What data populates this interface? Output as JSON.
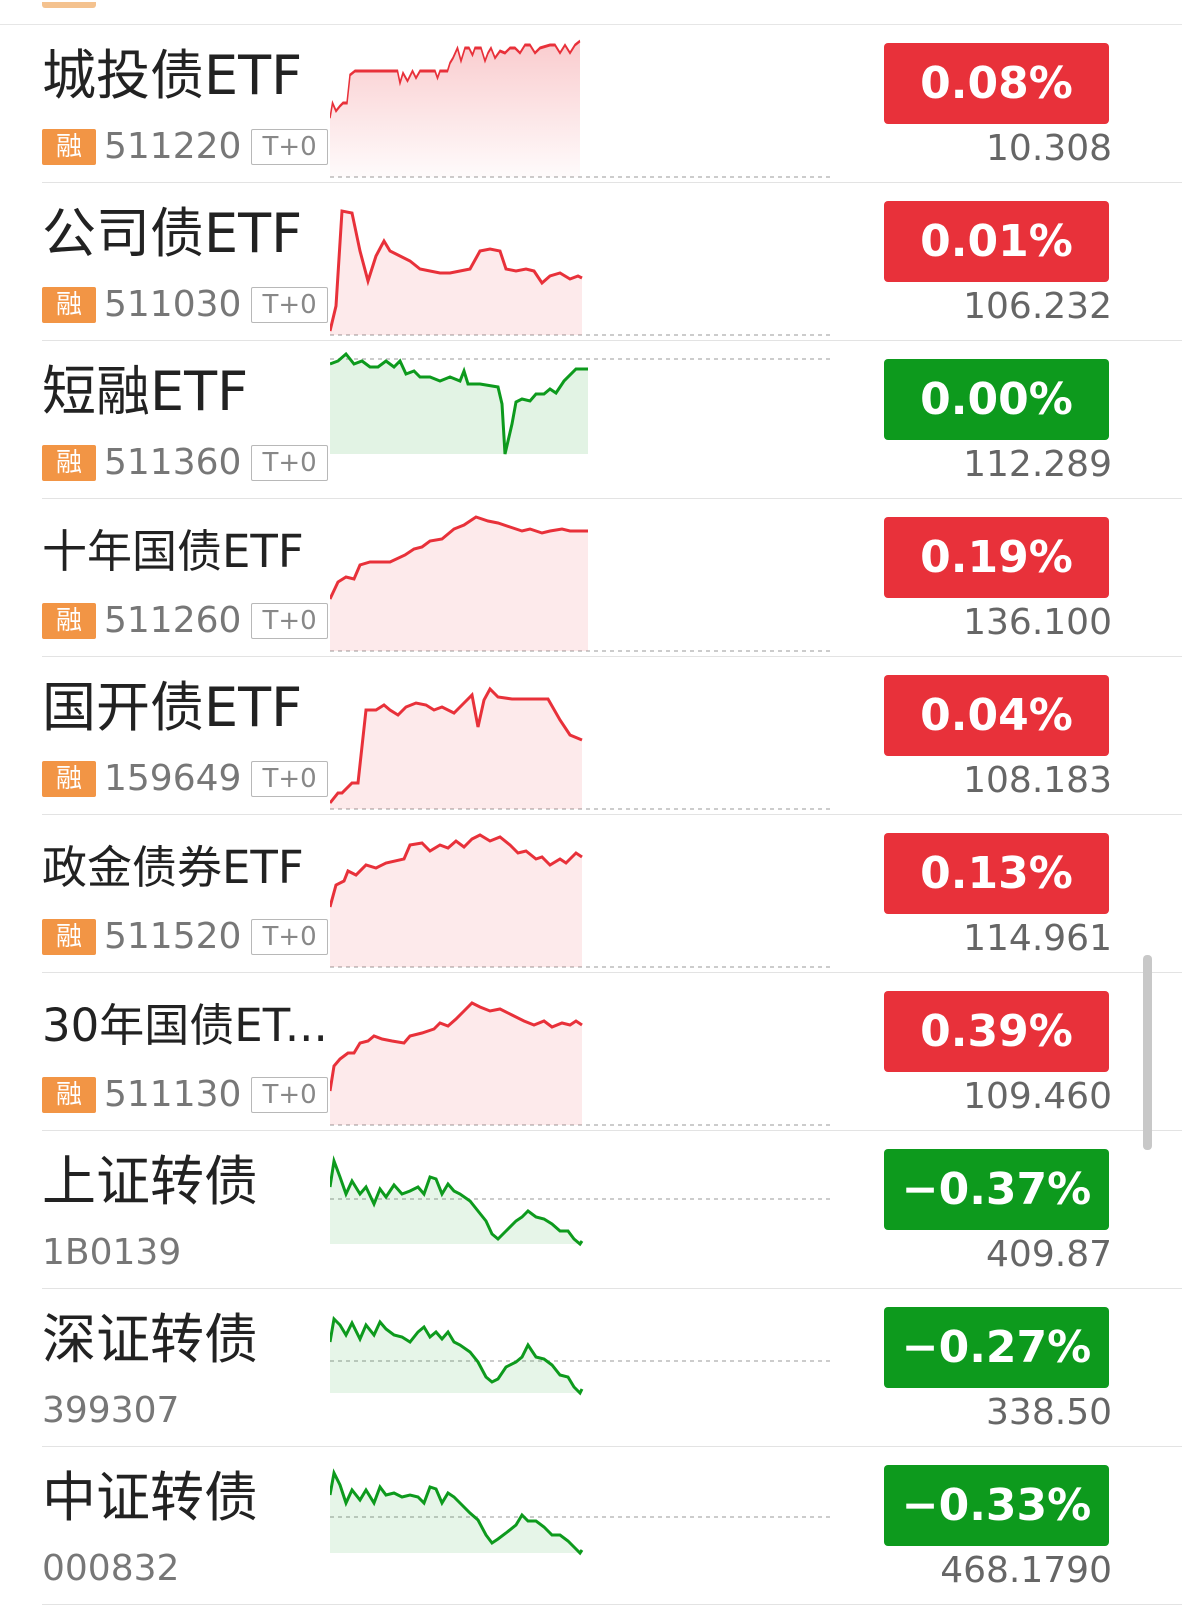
{
  "colors": {
    "up": "#e8313a",
    "down": "#0d9a1d",
    "rong_badge": "#f29545"
  },
  "rows": [
    {
      "name": "城投债ETF",
      "rong": "融",
      "code": "511220",
      "t0": "T+0",
      "change": "0.08%",
      "price": "10.308",
      "trend": "up"
    },
    {
      "name": "公司债ETF",
      "rong": "融",
      "code": "511030",
      "t0": "T+0",
      "change": "0.01%",
      "price": "106.232",
      "trend": "up"
    },
    {
      "name": "短融ETF",
      "rong": "融",
      "code": "511360",
      "t0": "T+0",
      "change": "0.00%",
      "price": "112.289",
      "trend": "flat"
    },
    {
      "name": "十年国债ETF",
      "rong": "融",
      "code": "511260",
      "t0": "T+0",
      "change": "0.19%",
      "price": "136.100",
      "trend": "up"
    },
    {
      "name": "国开债ETF",
      "rong": "融",
      "code": "159649",
      "t0": "T+0",
      "change": "0.04%",
      "price": "108.183",
      "trend": "up"
    },
    {
      "name": "政金债券ETF",
      "rong": "融",
      "code": "511520",
      "t0": "T+0",
      "change": "0.13%",
      "price": "114.961",
      "trend": "up"
    },
    {
      "name": "30年国债ET...",
      "rong": "融",
      "code": "511130",
      "t0": "T+0",
      "change": "0.39%",
      "price": "109.460",
      "trend": "up"
    },
    {
      "name": "上证转债",
      "code": "1B0139",
      "change": "−0.37%",
      "price": "409.87",
      "trend": "down"
    },
    {
      "name": "深证转债",
      "code": "399307",
      "change": "−0.27%",
      "price": "338.50",
      "trend": "down"
    },
    {
      "name": "中证转债",
      "code": "000832",
      "change": "−0.33%",
      "price": "468.1790",
      "trend": "down"
    }
  ]
}
